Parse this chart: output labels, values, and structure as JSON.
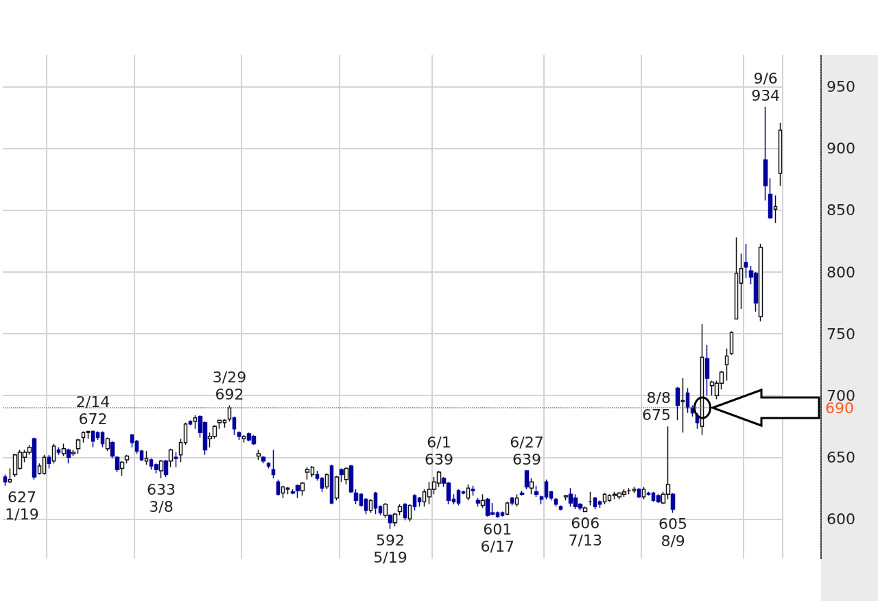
{
  "chart_data": {
    "type": "candlestick",
    "categories": [
      null,
      null,
      null,
      null,
      null,
      null,
      null,
      null,
      null,
      null,
      null,
      null,
      null,
      null,
      null,
      null,
      null,
      null,
      null,
      null,
      null,
      null,
      null,
      null,
      null,
      null,
      null,
      null,
      null,
      null,
      null,
      null,
      null,
      null,
      null,
      null,
      null,
      null,
      null,
      null,
      null,
      null,
      null,
      null,
      null,
      null,
      null,
      null,
      null,
      null,
      null,
      null,
      null,
      null,
      null,
      null,
      null,
      null,
      null,
      null,
      null,
      null,
      null,
      null,
      null,
      null,
      null,
      null,
      null,
      null,
      null,
      null,
      null,
      null,
      null,
      null,
      null,
      null,
      null,
      null,
      null,
      null,
      null,
      null,
      null,
      null,
      null,
      null,
      null,
      null,
      null,
      null,
      null,
      null,
      null,
      null,
      null,
      null,
      null,
      null,
      null,
      null,
      null,
      null,
      null,
      null,
      null,
      null,
      null,
      null,
      null,
      null,
      null,
      null,
      null,
      null,
      null,
      null,
      null,
      null,
      null,
      null,
      null,
      null,
      null,
      null,
      null,
      null,
      null,
      null,
      null,
      null,
      null,
      null,
      null,
      null,
      null,
      null,
      null,
      null,
      null,
      null,
      null,
      null,
      null,
      null,
      null,
      null,
      null,
      null,
      null,
      null,
      null,
      null,
      null,
      null,
      null,
      null,
      null,
      null
    ],
    "ohlc": [
      [
        634,
        636,
        627,
        630
      ],
      [
        630,
        641,
        629,
        632
      ],
      [
        636,
        653,
        634,
        652
      ],
      [
        641,
        656,
        640,
        654
      ],
      [
        650,
        656,
        646,
        654
      ],
      [
        654,
        660,
        652,
        658
      ],
      [
        665,
        666,
        632,
        634
      ],
      [
        637,
        645,
        636,
        643
      ],
      [
        637,
        652,
        636,
        650
      ],
      [
        650,
        652,
        641,
        645
      ],
      [
        647,
        661,
        645,
        659
      ],
      [
        656,
        658,
        652,
        654
      ],
      [
        653,
        661,
        651,
        657
      ],
      [
        656,
        657,
        645,
        650
      ],
      [
        653,
        656,
        651,
        654
      ],
      [
        657,
        665,
        653,
        664
      ],
      [
        666,
        671,
        662,
        670
      ],
      [
        670,
        671,
        665,
        671
      ],
      [
        671,
        672,
        658,
        663
      ],
      [
        670,
        671,
        664,
        666
      ],
      [
        670,
        671,
        658,
        661
      ],
      [
        657,
        666,
        655,
        665
      ],
      [
        662,
        663,
        649,
        651
      ],
      [
        650,
        651,
        638,
        640
      ],
      [
        641,
        647,
        635,
        646
      ],
      [
        648,
        652,
        645,
        651
      ],
      [
        668,
        669,
        658,
        662
      ],
      [
        663,
        664,
        653,
        655
      ],
      [
        655,
        656,
        647,
        648
      ],
      [
        647,
        655,
        644,
        649
      ],
      [
        648,
        649,
        640,
        643
      ],
      [
        644,
        645,
        637,
        640
      ],
      [
        639,
        648,
        633,
        647
      ],
      [
        647,
        648,
        634,
        636
      ],
      [
        647,
        657,
        642,
        656
      ],
      [
        650,
        654,
        642,
        649
      ],
      [
        652,
        665,
        646,
        662
      ],
      [
        662,
        678,
        660,
        677
      ],
      [
        679,
        680,
        676,
        677
      ],
      [
        679,
        684,
        673,
        682
      ],
      [
        683,
        684,
        666,
        670
      ],
      [
        678,
        679,
        652,
        656
      ],
      [
        665,
        670,
        658,
        667
      ],
      [
        667,
        676,
        665,
        675
      ],
      [
        678,
        680,
        673,
        680
      ],
      [
        678,
        681,
        674,
        680
      ],
      [
        681,
        692,
        679,
        690
      ],
      [
        682,
        683,
        668,
        673
      ],
      [
        670,
        671,
        664,
        667
      ],
      [
        665,
        668,
        662,
        667
      ],
      [
        669,
        670,
        663,
        664
      ],
      [
        667,
        668,
        660,
        661
      ],
      [
        651,
        656,
        648,
        653
      ],
      [
        650,
        651,
        645,
        647
      ],
      [
        645,
        646,
        641,
        643
      ],
      [
        640,
        656,
        633,
        636
      ],
      [
        630,
        632,
        619,
        620
      ],
      [
        621,
        627,
        617,
        626
      ],
      [
        624,
        626,
        620,
        625
      ],
      [
        622,
        624,
        620,
        621
      ],
      [
        627,
        628,
        617,
        623
      ],
      [
        623,
        630,
        619,
        629
      ],
      [
        638,
        642,
        632,
        640
      ],
      [
        636,
        643,
        634,
        642
      ],
      [
        636,
        639,
        631,
        633
      ],
      [
        633,
        634,
        622,
        625
      ],
      [
        626,
        637,
        624,
        636
      ],
      [
        643,
        644,
        612,
        613
      ],
      [
        617,
        635,
        615,
        634
      ],
      [
        640,
        641,
        630,
        636
      ],
      [
        632,
        642,
        628,
        641
      ],
      [
        643,
        644,
        621,
        622
      ],
      [
        621,
        624,
        612,
        615
      ],
      [
        620,
        621,
        610,
        611
      ],
      [
        616,
        617,
        604,
        607
      ],
      [
        607,
        616,
        605,
        615
      ],
      [
        621,
        622,
        604,
        609
      ],
      [
        610,
        611,
        603,
        605
      ],
      [
        603,
        613,
        601,
        612
      ],
      [
        603,
        604,
        592,
        597
      ],
      [
        597,
        605,
        594,
        604
      ],
      [
        606,
        612,
        603,
        610
      ],
      [
        612,
        613,
        599,
        601
      ],
      [
        600,
        612,
        598,
        611
      ],
      [
        619,
        620,
        607,
        610
      ],
      [
        617,
        618,
        610,
        614
      ],
      [
        614,
        624,
        610,
        622
      ],
      [
        618,
        630,
        612,
        624
      ],
      [
        624,
        634,
        620,
        630
      ],
      [
        629,
        639,
        626,
        638
      ],
      [
        633,
        634,
        626,
        629
      ],
      [
        629,
        630,
        612,
        615
      ],
      [
        616,
        620,
        612,
        614
      ],
      [
        623,
        624,
        611,
        613
      ],
      [
        622,
        623,
        620,
        621
      ],
      [
        617,
        628,
        615,
        625
      ],
      [
        624,
        627,
        619,
        623
      ],
      [
        615,
        617,
        610,
        613
      ],
      [
        611,
        620,
        609,
        615
      ],
      [
        616,
        617,
        602,
        603
      ],
      [
        605,
        613,
        603,
        604
      ],
      [
        605,
        606,
        601,
        602
      ],
      [
        605,
        606,
        602,
        603
      ],
      [
        604,
        614,
        603,
        613
      ],
      [
        617,
        618,
        611,
        613
      ],
      [
        612,
        620,
        610,
        617
      ],
      [
        621,
        623,
        619,
        620
      ],
      [
        639,
        639,
        624,
        626
      ],
      [
        625,
        633,
        620,
        630
      ],
      [
        622,
        627,
        618,
        620
      ],
      [
        618,
        619,
        612,
        616
      ],
      [
        630,
        632,
        616,
        618
      ],
      [
        622,
        623,
        615,
        617
      ],
      [
        616,
        617,
        610,
        612
      ],
      [
        610,
        611,
        607,
        608
      ],
      [
        618,
        619,
        615,
        619
      ],
      [
        620,
        625,
        610,
        613
      ],
      [
        617,
        620,
        608,
        610
      ],
      [
        612,
        613,
        607,
        609
      ],
      [
        606,
        610,
        606,
        609
      ],
      [
        614,
        622,
        611,
        614
      ],
      [
        617,
        618,
        608,
        610
      ],
      [
        614,
        615,
        609,
        612
      ],
      [
        614,
        621,
        612,
        620
      ],
      [
        615,
        620,
        614,
        619
      ],
      [
        619,
        622,
        616,
        620
      ],
      [
        618,
        622,
        616,
        621
      ],
      [
        620,
        624,
        618,
        622
      ],
      [
        623,
        625,
        620,
        623
      ],
      [
        623,
        626,
        621,
        624
      ],
      [
        624,
        625,
        617,
        618
      ],
      [
        618,
        626,
        616,
        624
      ],
      [
        621,
        622,
        619,
        620
      ],
      [
        621,
        622,
        614,
        615
      ],
      [
        619,
        620,
        613,
        614
      ],
      [
        613,
        622,
        612,
        620
      ],
      [
        620,
        675,
        616,
        628
      ],
      [
        620,
        621,
        605,
        608
      ],
      [
        706,
        707,
        680,
        692
      ],
      [
        695,
        714,
        670,
        696
      ],
      [
        702,
        706,
        686,
        690
      ],
      [
        690,
        692,
        683,
        686
      ],
      [
        684,
        686,
        673,
        678
      ],
      [
        675,
        758,
        668,
        731
      ],
      [
        730,
        741,
        700,
        714
      ],
      [
        708,
        712,
        700,
        711
      ],
      [
        700,
        712,
        697,
        710
      ],
      [
        710,
        720,
        705,
        719
      ],
      [
        725,
        738,
        712,
        732
      ],
      [
        734,
        752,
        733,
        751
      ],
      [
        762,
        828,
        762,
        799
      ],
      [
        791,
        815,
        770,
        803
      ],
      [
        808,
        823,
        795,
        804
      ],
      [
        801,
        805,
        790,
        796
      ],
      [
        799,
        800,
        768,
        775
      ],
      [
        764,
        823,
        760,
        820
      ],
      [
        891,
        934,
        858,
        870
      ],
      [
        863,
        876,
        843,
        844
      ],
      [
        851,
        862,
        840,
        853
      ],
      [
        880,
        921,
        870,
        915
      ]
    ],
    "colors": [
      "#00009c",
      "#ffffff",
      "#ffffff",
      "#ffffff",
      "#ffffff",
      "#ffffff",
      "#00009c",
      "#ffffff",
      "#ffffff",
      "#00009c",
      "#ffffff",
      "#00009c",
      "#ffffff",
      "#00009c",
      "#ffffff",
      "#ffffff",
      "#ffffff",
      "#ffffff",
      "#00009c",
      "#00009c",
      "#00009c",
      "#ffffff",
      "#00009c",
      "#00009c",
      "#ffffff",
      "#ffffff",
      "#00009c",
      "#00009c",
      "#00009c",
      "#ffffff",
      "#00009c",
      "#00009c",
      "#ffffff",
      "#00009c",
      "#ffffff",
      "#00009c",
      "#ffffff",
      "#ffffff",
      "#00009c",
      "#ffffff",
      "#00009c",
      "#00009c",
      "#ffffff",
      "#ffffff",
      "#ffffff",
      "#ffffff",
      "#ffffff",
      "#00009c",
      "#00009c",
      "#ffffff",
      "#00009c",
      "#00009c",
      "#ffffff",
      "#00009c",
      "#00009c",
      "#00009c",
      "#00009c",
      "#ffffff",
      "#ffffff",
      "#00009c",
      "#00009c",
      "#ffffff",
      "#ffffff",
      "#ffffff",
      "#00009c",
      "#00009c",
      "#ffffff",
      "#00009c",
      "#ffffff",
      "#00009c",
      "#ffffff",
      "#00009c",
      "#00009c",
      "#00009c",
      "#00009c",
      "#ffffff",
      "#00009c",
      "#00009c",
      "#ffffff",
      "#00009c",
      "#ffffff",
      "#ffffff",
      "#00009c",
      "#ffffff",
      "#00009c",
      "#00009c",
      "#ffffff",
      "#ffffff",
      "#ffffff",
      "#ffffff",
      "#00009c",
      "#00009c",
      "#00009c",
      "#00009c",
      "#00009c",
      "#ffffff",
      "#00009c",
      "#00009c",
      "#ffffff",
      "#00009c",
      "#00009c",
      "#00009c",
      "#00009c",
      "#ffffff",
      "#00009c",
      "#ffffff",
      "#00009c",
      "#00009c",
      "#ffffff",
      "#00009c",
      "#00009c",
      "#00009c",
      "#00009c",
      "#00009c",
      "#00009c",
      "#ffffff",
      "#00009c",
      "#00009c",
      "#00009c",
      "#ffffff",
      "#111111",
      "#00009c",
      "#00009c",
      "#ffffff",
      "#ffffff",
      "#ffffff",
      "#ffffff",
      "#ffffff",
      "#111111",
      "#ffffff",
      "#00009c",
      "#ffffff",
      "#00009c",
      "#00009c",
      "#00009c",
      "#ffffff",
      "#ffffff",
      "#00009c",
      "#00009c",
      "#ffffff",
      "#00009c",
      "#00009c",
      "#00009c",
      "#ffffff",
      "#00009c",
      "#ffffff",
      "#ffffff",
      "#ffffff",
      "#ffffff",
      "#ffffff",
      "#ffffff",
      "#ffffff",
      "#00009c",
      "#00009c",
      "#00009c",
      "#ffffff",
      "#00009c",
      "#00009c",
      "#ffffff",
      "#ffffff"
    ],
    "ylim": [
      568,
      976
    ],
    "yticks": [
      600,
      650,
      700,
      750,
      800,
      850,
      900,
      950
    ],
    "grid": true,
    "tick_labels": "y",
    "ref_lines": [
      {
        "axis": "y",
        "value": 690,
        "label": "690",
        "line_style": "dotted"
      }
    ],
    "annotations": [
      "627\n1/19",
      "2/14\n672",
      "633\n3/8",
      "3/29\n692",
      "592\n5/19",
      "6/1\n639",
      "601\n6/17",
      "6/27\n639",
      "606\n7/13",
      "8/8\n675",
      "605\n8/9",
      "9/6\n934"
    ]
  }
}
